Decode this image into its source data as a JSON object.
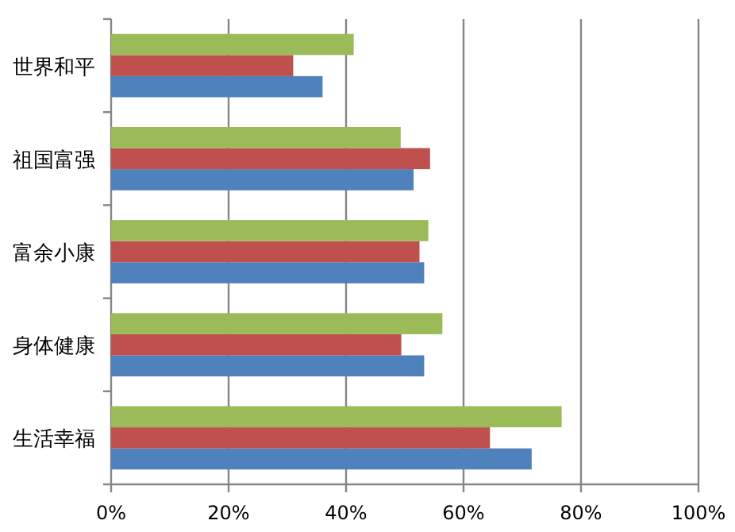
{
  "chart_data": {
    "type": "bar",
    "orientation": "horizontal",
    "categories": [
      "世界和平",
      "祖国富强",
      "富余小康",
      "身体健康",
      "生活幸福"
    ],
    "series": [
      {
        "color": "#4f81bd",
        "values": [
          36,
          51.5,
          53.3,
          53.3,
          71.6
        ]
      },
      {
        "color": "#c0504d",
        "values": [
          31,
          54.3,
          52.5,
          49.4,
          64.5
        ]
      },
      {
        "color": "#9bbb59",
        "values": [
          41.3,
          49.3,
          54,
          56.4,
          76.7
        ]
      }
    ],
    "xlim": [
      0,
      100
    ],
    "xticks": [
      {
        "value": 0,
        "label": "0%"
      },
      {
        "value": 20,
        "label": "20%"
      },
      {
        "value": 40,
        "label": "40%"
      },
      {
        "value": 60,
        "label": "60%"
      },
      {
        "value": 80,
        "label": "80%"
      },
      {
        "value": 100,
        "label": "100%"
      }
    ],
    "grid": "x"
  }
}
